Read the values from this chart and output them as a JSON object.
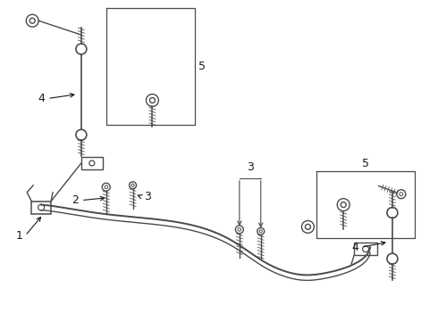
{
  "bg_color": "#ffffff",
  "lc": "#4a4a4a",
  "label_color": "#1a1a1a",
  "fig_width": 4.9,
  "fig_height": 3.6,
  "dpi": 100,
  "xlim": [
    0,
    490
  ],
  "ylim": [
    360,
    0
  ]
}
